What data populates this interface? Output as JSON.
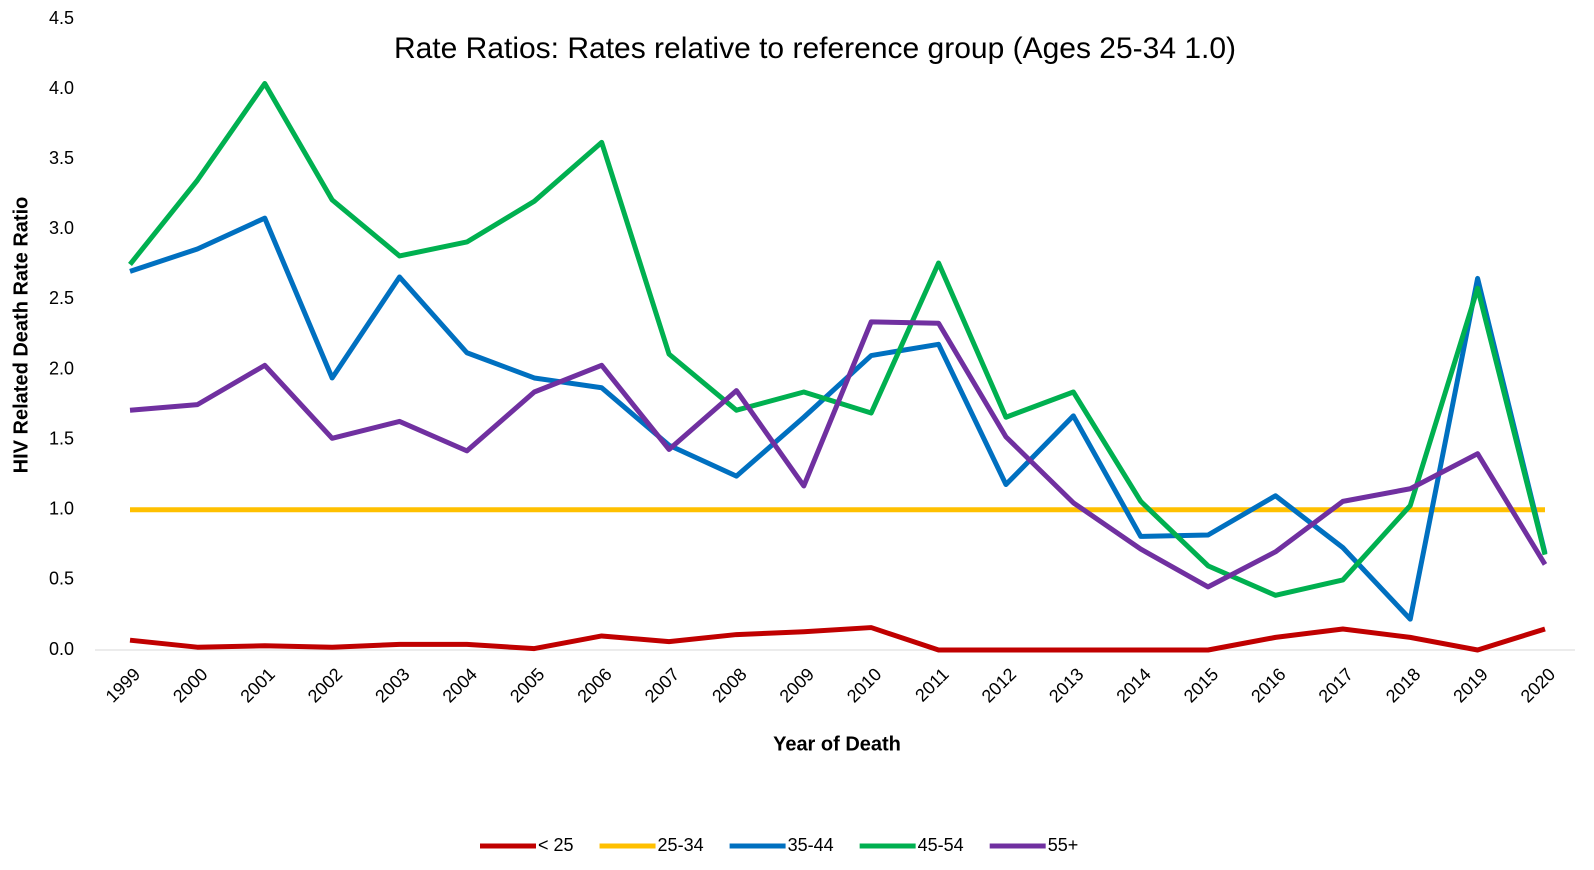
{
  "chart_data": {
    "type": "line",
    "title": "Rate Ratios: Rates relative to reference group (Ages 25-34 1.0)",
    "xlabel": "Year of Death",
    "ylabel": "HIV Related Death Rate Ratio",
    "categories": [
      "1999",
      "2000",
      "2001",
      "2002",
      "2003",
      "2004",
      "2005",
      "2006",
      "2007",
      "2008",
      "2009",
      "2010",
      "2011",
      "2012",
      "2013",
      "2014",
      "2015",
      "2016",
      "2017",
      "2018",
      "2019",
      "2020"
    ],
    "series": [
      {
        "name": "< 25",
        "color": "#c00000",
        "values": [
          0.07,
          0.02,
          0.03,
          0.02,
          0.04,
          0.04,
          0.01,
          0.1,
          0.06,
          0.11,
          0.13,
          0.16,
          0,
          0,
          0,
          0,
          0,
          0.09,
          0.15,
          0.09,
          0,
          0.15
        ]
      },
      {
        "name": "25-34",
        "color": "#ffc000",
        "values": [
          1,
          1,
          1,
          1,
          1,
          1,
          1,
          1,
          1,
          1,
          1,
          1,
          1,
          1,
          1,
          1,
          1,
          1,
          1,
          1,
          1,
          1
        ]
      },
      {
        "name": "35-44",
        "color": "#0070c0",
        "values": [
          2.7,
          2.86,
          3.08,
          1.94,
          2.66,
          2.12,
          1.94,
          1.87,
          1.46,
          1.24,
          1.66,
          2.1,
          2.18,
          1.18,
          1.67,
          0.81,
          0.82,
          1.1,
          0.73,
          0.22,
          2.65,
          0.69
        ]
      },
      {
        "name": "45-54",
        "color": "#00b050",
        "values": [
          2.75,
          3.35,
          4.04,
          3.21,
          2.81,
          2.91,
          3.2,
          3.62,
          2.11,
          1.71,
          1.84,
          1.69,
          2.76,
          1.66,
          1.84,
          1.06,
          0.6,
          0.39,
          0.5,
          1.03,
          2.58,
          0.68
        ]
      },
      {
        "name": "55+",
        "color": "#7030a0",
        "values": [
          1.71,
          1.75,
          2.03,
          1.51,
          1.63,
          1.42,
          1.84,
          2.03,
          1.43,
          1.85,
          1.17,
          2.34,
          2.33,
          1.52,
          1.05,
          0.72,
          0.45,
          0.7,
          1.06,
          1.15,
          1.4,
          0.61
        ]
      }
    ],
    "ylim": [
      0,
      4.5
    ],
    "yticks": [
      {
        "value": 0,
        "label": "0.0"
      },
      0.5,
      {
        "value": 1,
        "label": "1.0"
      },
      1.5,
      {
        "value": 2,
        "label": "2.0"
      },
      2.5,
      {
        "value": 3,
        "label": "3.0"
      },
      3.5,
      {
        "value": 4,
        "label": "4.0"
      },
      4.5
    ],
    "grid": false,
    "legend": "bottom"
  }
}
